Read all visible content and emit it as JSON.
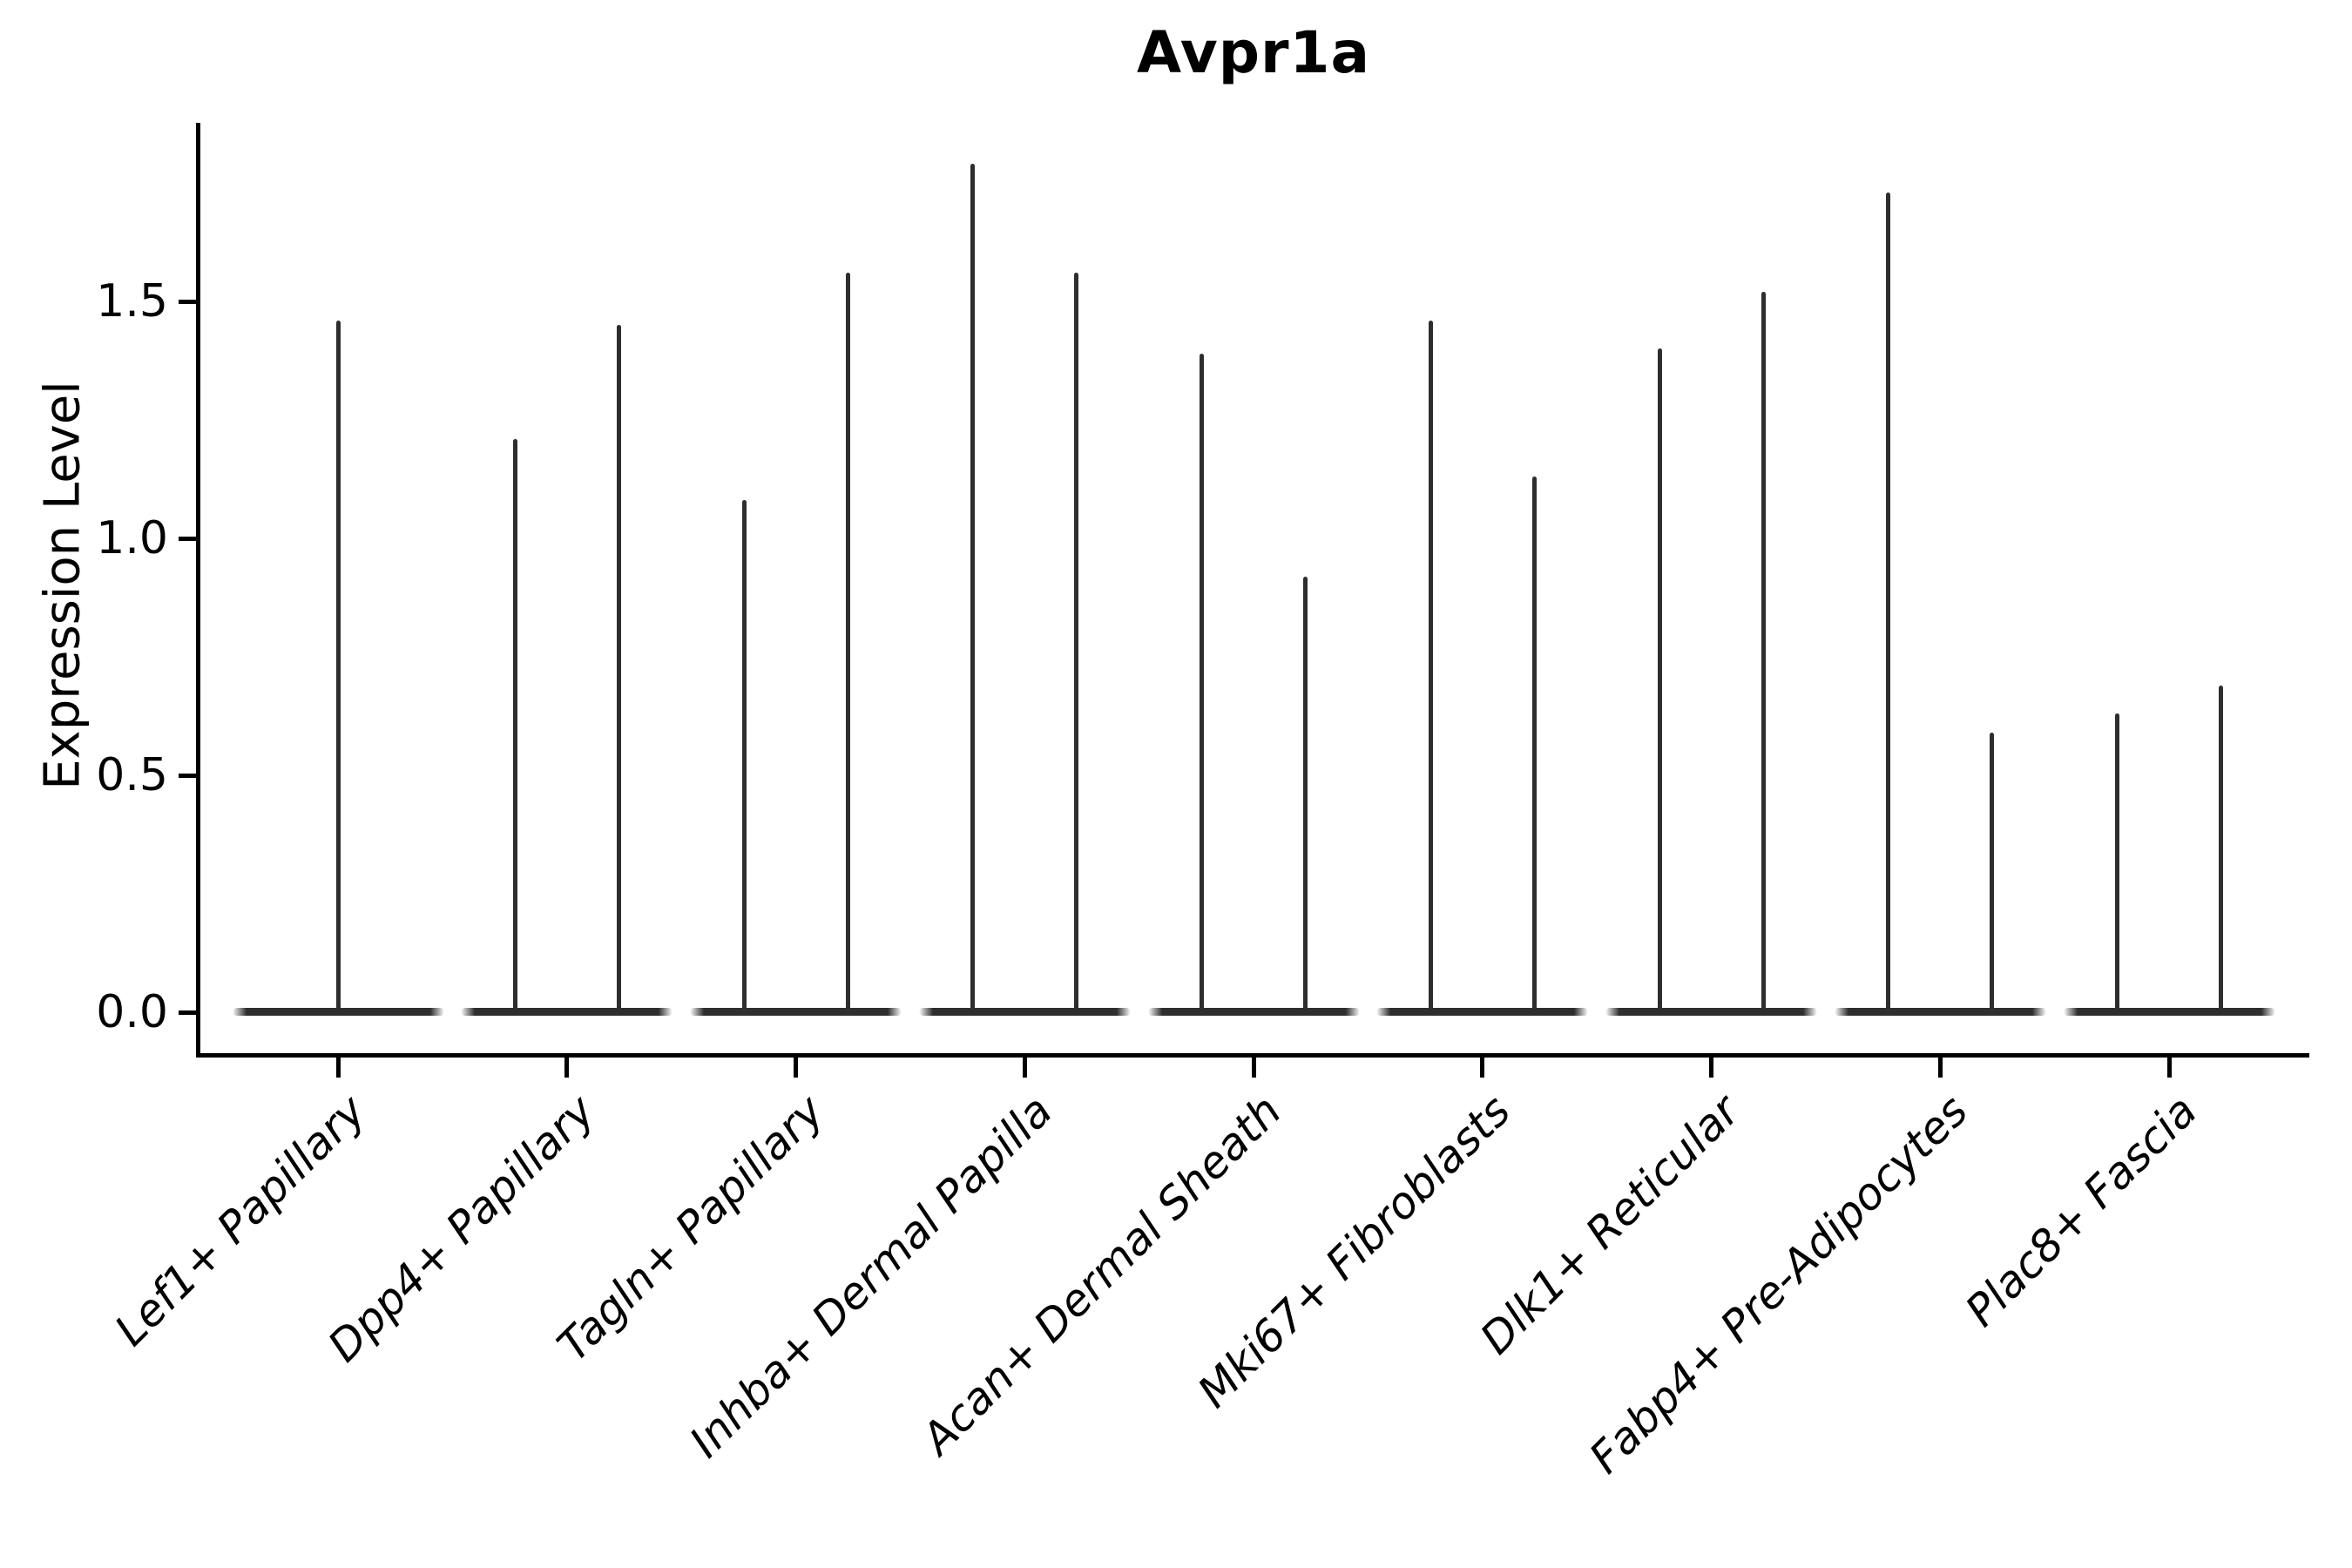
{
  "title": "Avpr1a",
  "y_axis_label": "Expression Level",
  "colors": {
    "violin_line": "#2e2e2e",
    "axis": "#000000",
    "text": "#000000",
    "background": "#ffffff"
  },
  "chart_data": {
    "type": "violin",
    "title": "Avpr1a",
    "xlabel": "",
    "ylabel": "Expression Level",
    "ylim": [
      -0.09,
      1.88
    ],
    "yticks": [
      "0.0",
      "0.5",
      "1.0",
      "1.5"
    ],
    "ytick_values": [
      0.0,
      0.5,
      1.0,
      1.5
    ],
    "grid": false,
    "legend_position": "none",
    "style_note": "Seurat-style VlnPlot: near-zero-width violins; wide flat body at zero expression with a thin spike up to the max expression; first category has a single centered violin, all others have two dodged violins",
    "categories": [
      "Lef1+ Papillary",
      "Dpp4+ Papillary",
      "Tagln+ Papillary",
      "Inhba+ Dermal Papilla",
      "Acan+ Dermal Sheath",
      "Mki67+ Fibroblasts",
      "Dlk1+ Reticular",
      "Fabp4+ Pre-Adipocytes",
      "Plac8+ Fascia"
    ],
    "violins": [
      {
        "category": "Lef1+ Papillary",
        "spike_max_values": [
          1.46
        ]
      },
      {
        "category": "Dpp4+ Papillary",
        "spike_max_values": [
          1.21,
          1.45
        ]
      },
      {
        "category": "Tagln+ Papillary",
        "spike_max_values": [
          1.08,
          1.56
        ]
      },
      {
        "category": "Inhba+ Dermal Papilla",
        "spike_max_values": [
          1.79,
          1.56
        ]
      },
      {
        "category": "Acan+ Dermal Sheath",
        "spike_max_values": [
          1.39,
          0.92
        ]
      },
      {
        "category": "Mki67+ Fibroblasts",
        "spike_max_values": [
          1.46,
          1.13
        ]
      },
      {
        "category": "Dlk1+ Reticular",
        "spike_max_values": [
          1.4,
          1.52
        ]
      },
      {
        "category": "Fabp4+ Pre-Adipocytes",
        "spike_max_values": [
          1.73,
          0.59
        ]
      },
      {
        "category": "Plac8+ Fascia",
        "spike_max_values": [
          0.63,
          0.69
        ]
      }
    ]
  }
}
